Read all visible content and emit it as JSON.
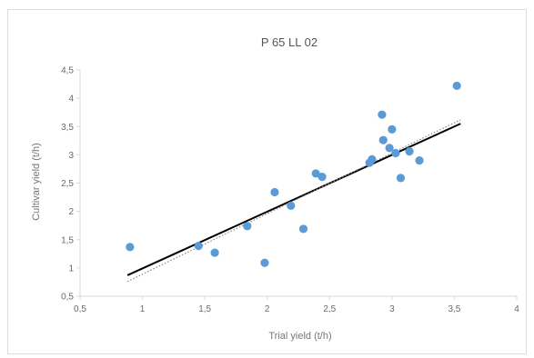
{
  "chart_data": {
    "type": "scatter",
    "title": "P 65 LL 02",
    "xlabel": "Trial yield (t/h)",
    "ylabel": "Cultivar yield (t/h)",
    "xlim": [
      0.5,
      4
    ],
    "ylim": [
      0.5,
      4.5
    ],
    "x_ticks": [
      0.5,
      1,
      1.5,
      2,
      2.5,
      3,
      3.5,
      4
    ],
    "y_ticks": [
      0.5,
      1,
      1.5,
      2,
      2.5,
      3,
      3.5,
      4,
      4.5
    ],
    "x_tick_labels": [
      "0,5",
      "1",
      "1,5",
      "2",
      "2,5",
      "3",
      "3,5",
      "4"
    ],
    "y_tick_labels": [
      "0,5",
      "1",
      "1,5",
      "2",
      "2,5",
      "3",
      "3,5",
      "4",
      "4,5"
    ],
    "grid": false,
    "legend": "none",
    "colors": {
      "points": "#5b9bd5",
      "fit_line": "#000000",
      "reference_line": "#888888",
      "axis": "#d9d9d9"
    },
    "series": [
      {
        "type": "scatter",
        "points": [
          {
            "x": 0.9,
            "y": 1.37
          },
          {
            "x": 1.45,
            "y": 1.39
          },
          {
            "x": 1.58,
            "y": 1.27
          },
          {
            "x": 1.84,
            "y": 1.74
          },
          {
            "x": 1.98,
            "y": 1.09
          },
          {
            "x": 2.06,
            "y": 2.34
          },
          {
            "x": 2.19,
            "y": 2.1
          },
          {
            "x": 2.29,
            "y": 1.69
          },
          {
            "x": 2.39,
            "y": 2.67
          },
          {
            "x": 2.44,
            "y": 2.61
          },
          {
            "x": 2.82,
            "y": 2.86
          },
          {
            "x": 2.84,
            "y": 2.92
          },
          {
            "x": 2.92,
            "y": 3.71
          },
          {
            "x": 2.93,
            "y": 3.26
          },
          {
            "x": 2.98,
            "y": 3.12
          },
          {
            "x": 3.0,
            "y": 3.45
          },
          {
            "x": 3.03,
            "y": 3.03
          },
          {
            "x": 3.07,
            "y": 2.59
          },
          {
            "x": 3.14,
            "y": 3.06
          },
          {
            "x": 3.22,
            "y": 2.9
          },
          {
            "x": 3.52,
            "y": 4.22
          }
        ]
      },
      {
        "type": "line",
        "style": "solid",
        "points": [
          {
            "x": 0.88,
            "y": 0.87
          },
          {
            "x": 3.55,
            "y": 3.55
          }
        ]
      },
      {
        "type": "line",
        "style": "dotted",
        "points": [
          {
            "x": 0.88,
            "y": 0.76
          },
          {
            "x": 3.55,
            "y": 3.62
          }
        ]
      }
    ]
  }
}
